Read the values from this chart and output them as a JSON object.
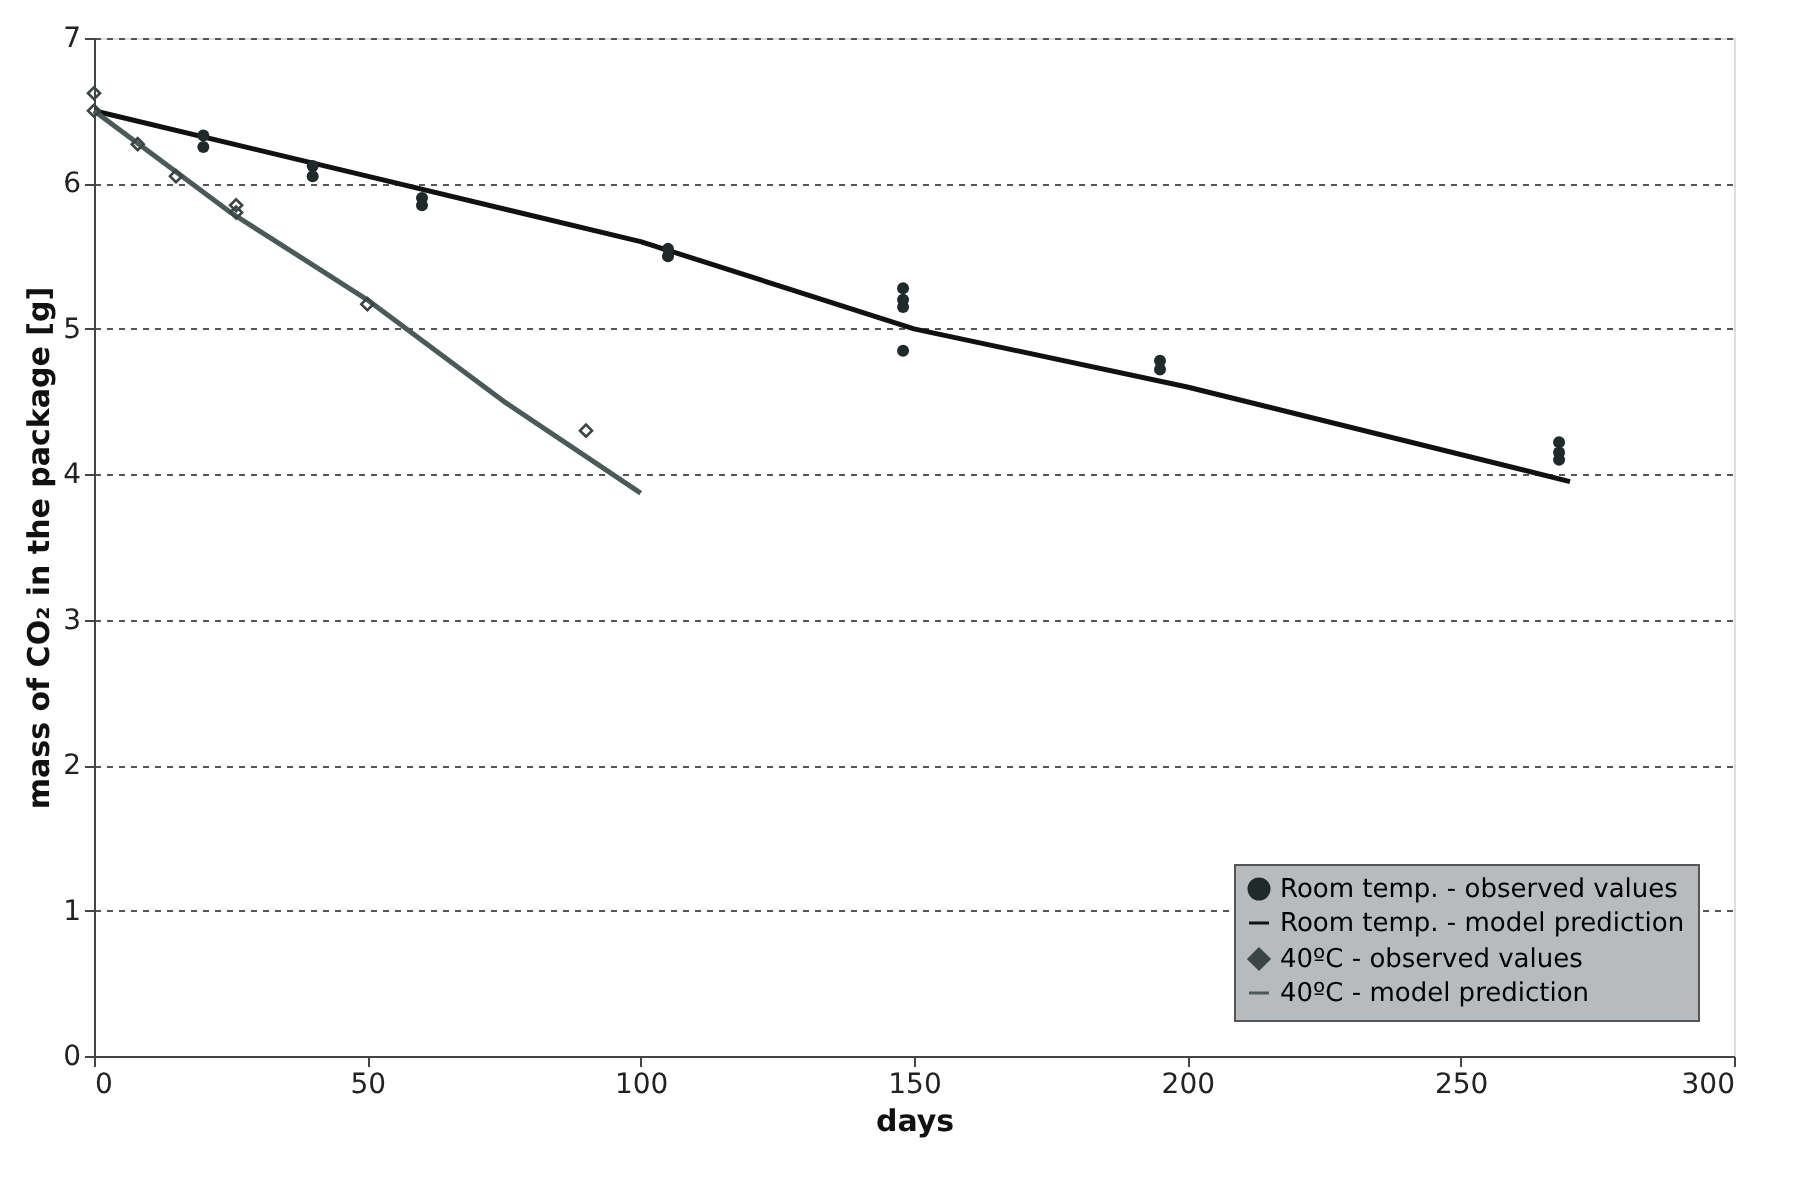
{
  "chart_data": {
    "type": "scatter",
    "xlabel": "days",
    "ylabel": "mass of CO₂ in the package [g]",
    "xlim": [
      0,
      300
    ],
    "xticks": [
      0,
      50,
      100,
      150,
      200,
      250,
      300
    ],
    "ylim": [
      0,
      7
    ],
    "yticks": [
      0,
      1,
      2,
      3,
      4,
      5,
      6,
      7
    ],
    "grid": "y",
    "legend": "bottom right",
    "series": [
      {
        "name": "Room temp. - observed values",
        "marker": "circle",
        "color": "#1f2b2b",
        "x": [
          20,
          20,
          40,
          40,
          60,
          60,
          105,
          105,
          148,
          148,
          148,
          148,
          195,
          195,
          268,
          268,
          268
        ],
        "values": [
          6.33,
          6.25,
          6.12,
          6.05,
          5.9,
          5.85,
          5.55,
          5.5,
          5.28,
          5.2,
          5.15,
          4.85,
          4.78,
          4.72,
          4.22,
          4.15,
          4.1
        ]
      },
      {
        "name": "Room temp. - model prediction",
        "type": "line",
        "marker": "none",
        "line_style": "solid",
        "color": "#111111",
        "x": [
          0,
          50,
          100,
          150,
          200,
          270
        ],
        "values": [
          6.5,
          6.05,
          5.6,
          5.0,
          4.6,
          3.95
        ]
      },
      {
        "name": "40ºC - observed values",
        "marker": "diamond",
        "color": "#3a4545",
        "x": [
          0,
          0,
          8,
          15,
          26,
          26,
          50,
          90
        ],
        "values": [
          6.62,
          6.5,
          6.27,
          6.05,
          5.85,
          5.8,
          5.17,
          4.3
        ]
      },
      {
        "name": "40ºC - model prediction",
        "type": "line",
        "marker": "none",
        "line_style": "solid",
        "color": "#4a5a5a",
        "x": [
          0,
          25,
          50,
          75,
          100
        ],
        "values": [
          6.5,
          5.8,
          5.2,
          4.5,
          3.87
        ]
      }
    ]
  }
}
